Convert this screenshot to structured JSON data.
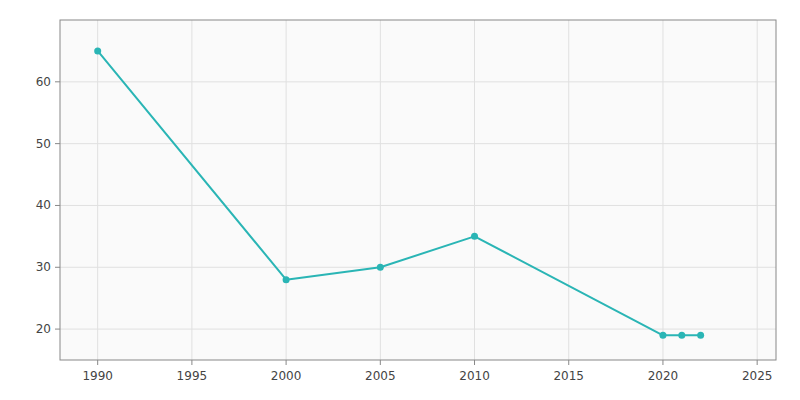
{
  "chart_data": {
    "type": "line",
    "x": [
      1990,
      2000,
      2005,
      2010,
      2020,
      2021,
      2022
    ],
    "values": [
      65,
      28,
      30,
      35,
      19,
      19,
      19
    ],
    "color": "#2ab5b5",
    "marker": "circle",
    "xlim": [
      1988,
      2026
    ],
    "ylim": [
      15,
      70
    ],
    "xticks": [
      1990,
      1995,
      2000,
      2005,
      2010,
      2015,
      2020,
      2025
    ],
    "yticks": [
      20,
      30,
      40,
      50,
      60
    ],
    "grid": true
  }
}
